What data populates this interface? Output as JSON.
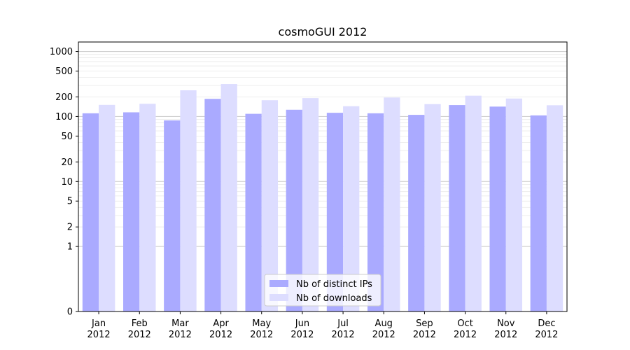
{
  "chart_data": {
    "type": "bar",
    "title": "cosmoGUI 2012",
    "xlabel": "",
    "ylabel": "",
    "yscale": "symlog",
    "ylim": [
      0,
      1400
    ],
    "grid": "horizontal",
    "legend_position": "lower-center",
    "categories": [
      [
        "Jan",
        "2012"
      ],
      [
        "Feb",
        "2012"
      ],
      [
        "Mar",
        "2012"
      ],
      [
        "Apr",
        "2012"
      ],
      [
        "May",
        "2012"
      ],
      [
        "Jun",
        "2012"
      ],
      [
        "Jul",
        "2012"
      ],
      [
        "Aug",
        "2012"
      ],
      [
        "Sep",
        "2012"
      ],
      [
        "Oct",
        "2012"
      ],
      [
        "Nov",
        "2012"
      ],
      [
        "Dec",
        "2012"
      ]
    ],
    "yticks": [
      0,
      1,
      2,
      5,
      10,
      20,
      50,
      100,
      200,
      500,
      1000
    ],
    "series": [
      {
        "name": "Nb of distinct IPs",
        "color": "#aaaaff",
        "values": [
          112,
          116,
          87,
          187,
          110,
          127,
          114,
          112,
          106,
          150,
          142,
          104
        ]
      },
      {
        "name": "Nb of downloads",
        "color": "#ddddff",
        "values": [
          151,
          157,
          253,
          316,
          178,
          192,
          144,
          196,
          155,
          209,
          189,
          149
        ]
      }
    ]
  }
}
